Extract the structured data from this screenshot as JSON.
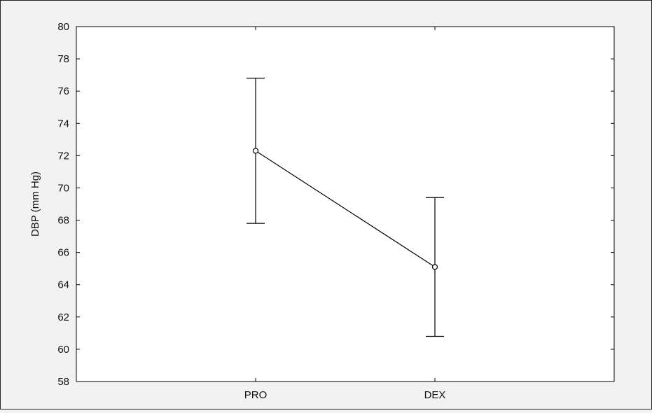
{
  "chart_data": {
    "type": "line",
    "title": "",
    "xlabel": "",
    "ylabel": "DBP (mm Hg)",
    "categories": [
      "PRO",
      "DEX"
    ],
    "series": [
      {
        "values": [
          72.3,
          65.1
        ],
        "error_low": [
          67.8,
          60.8
        ],
        "error_high": [
          76.8,
          69.4
        ]
      }
    ],
    "ylim": [
      58,
      80
    ],
    "yticks": [
      58,
      60,
      62,
      64,
      66,
      68,
      70,
      72,
      74,
      76,
      78,
      80
    ],
    "grid": false,
    "legend": "none",
    "colors": {
      "line": "#000000",
      "background": "#f2f2f2",
      "plot_background": "#ffffff"
    }
  }
}
